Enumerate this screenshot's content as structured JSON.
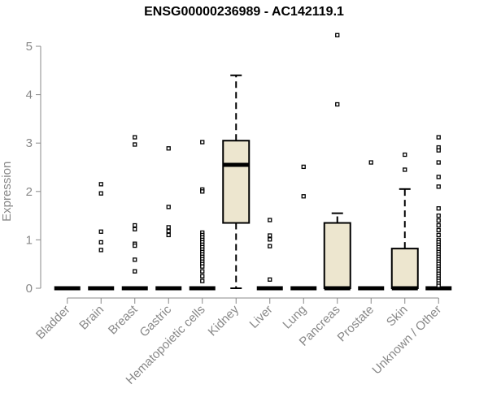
{
  "chart_data": {
    "type": "box",
    "title": "ENSG00000236989 - AC142119.1",
    "ylabel": "Expression",
    "xlabel": "",
    "ylim": [
      0,
      5.2
    ],
    "yticks": [
      0,
      1,
      2,
      3,
      4,
      5
    ],
    "grid": false,
    "legend": "none",
    "colors": {
      "box_fill": "#ede6cf",
      "line": "#000000",
      "axis": "#888888",
      "outlier": "#000000"
    },
    "categories": [
      "Bladder",
      "Brain",
      "Breast",
      "Gastric",
      "Hematopoietic cells",
      "Kidney",
      "Liver",
      "Lung",
      "Pancreas",
      "Prostate",
      "Skin",
      "Unknown / Other"
    ],
    "boxes": [
      {
        "category": "Bladder",
        "min": 0,
        "q1": 0,
        "median": 0,
        "q3": 0,
        "max": 0,
        "outliers": []
      },
      {
        "category": "Brain",
        "min": 0,
        "q1": 0,
        "median": 0,
        "q3": 0,
        "max": 0,
        "outliers": [
          2.15,
          1.96,
          1.17,
          0.95,
          0.79
        ]
      },
      {
        "category": "Breast",
        "min": 0,
        "q1": 0,
        "median": 0,
        "q3": 0,
        "max": 0,
        "outliers": [
          3.12,
          2.97,
          1.3,
          1.22,
          0.92,
          0.88,
          0.59,
          0.35
        ]
      },
      {
        "category": "Gastric",
        "min": 0,
        "q1": 0,
        "median": 0,
        "q3": 0,
        "max": 0,
        "outliers": [
          2.89,
          1.68,
          1.26,
          1.18,
          1.1
        ]
      },
      {
        "category": "Hematopoietic cells",
        "min": 0,
        "q1": 0,
        "median": 0,
        "q3": 0,
        "max": 0,
        "outliers": [
          3.02,
          2.04,
          2.0,
          1.15,
          1.1,
          1.05,
          1.0,
          0.95,
          0.9,
          0.85,
          0.8,
          0.75,
          0.7,
          0.65,
          0.6,
          0.55,
          0.5,
          0.45,
          0.35,
          0.25,
          0.15
        ]
      },
      {
        "category": "Kidney",
        "min": 0,
        "q1": 1.35,
        "median": 2.55,
        "q3": 3.05,
        "max": 4.4,
        "outliers": []
      },
      {
        "category": "Liver",
        "min": 0,
        "q1": 0,
        "median": 0,
        "q3": 0,
        "max": 0,
        "outliers": [
          1.41,
          1.09,
          1.01,
          0.87,
          0.18
        ]
      },
      {
        "category": "Lung",
        "min": 0,
        "q1": 0,
        "median": 0,
        "q3": 0,
        "max": 0,
        "outliers": [
          2.51,
          1.9
        ]
      },
      {
        "category": "Pancreas",
        "min": 0,
        "q1": 0,
        "median": 0,
        "q3": 1.35,
        "max": 1.55,
        "outliers": [
          5.23,
          3.8
        ]
      },
      {
        "category": "Prostate",
        "min": 0,
        "q1": 0,
        "median": 0,
        "q3": 0,
        "max": 0,
        "outliers": [
          2.6
        ]
      },
      {
        "category": "Skin",
        "min": 0,
        "q1": 0,
        "median": 0,
        "q3": 0.82,
        "max": 2.05,
        "outliers": [
          2.76,
          2.45
        ]
      },
      {
        "category": "Unknown / Other",
        "min": 0,
        "q1": 0,
        "median": 0,
        "q3": 0,
        "max": 0,
        "outliers": [
          3.12,
          2.91,
          2.85,
          2.6,
          2.3,
          2.1,
          1.65,
          1.5,
          1.4,
          1.3,
          1.2,
          1.1,
          1.0,
          0.95,
          0.9,
          0.85,
          0.8,
          0.75,
          0.7,
          0.65,
          0.6,
          0.55,
          0.5,
          0.45,
          0.4,
          0.35,
          0.3,
          0.25,
          0.2,
          0.15,
          0.1,
          0.05
        ]
      }
    ]
  }
}
